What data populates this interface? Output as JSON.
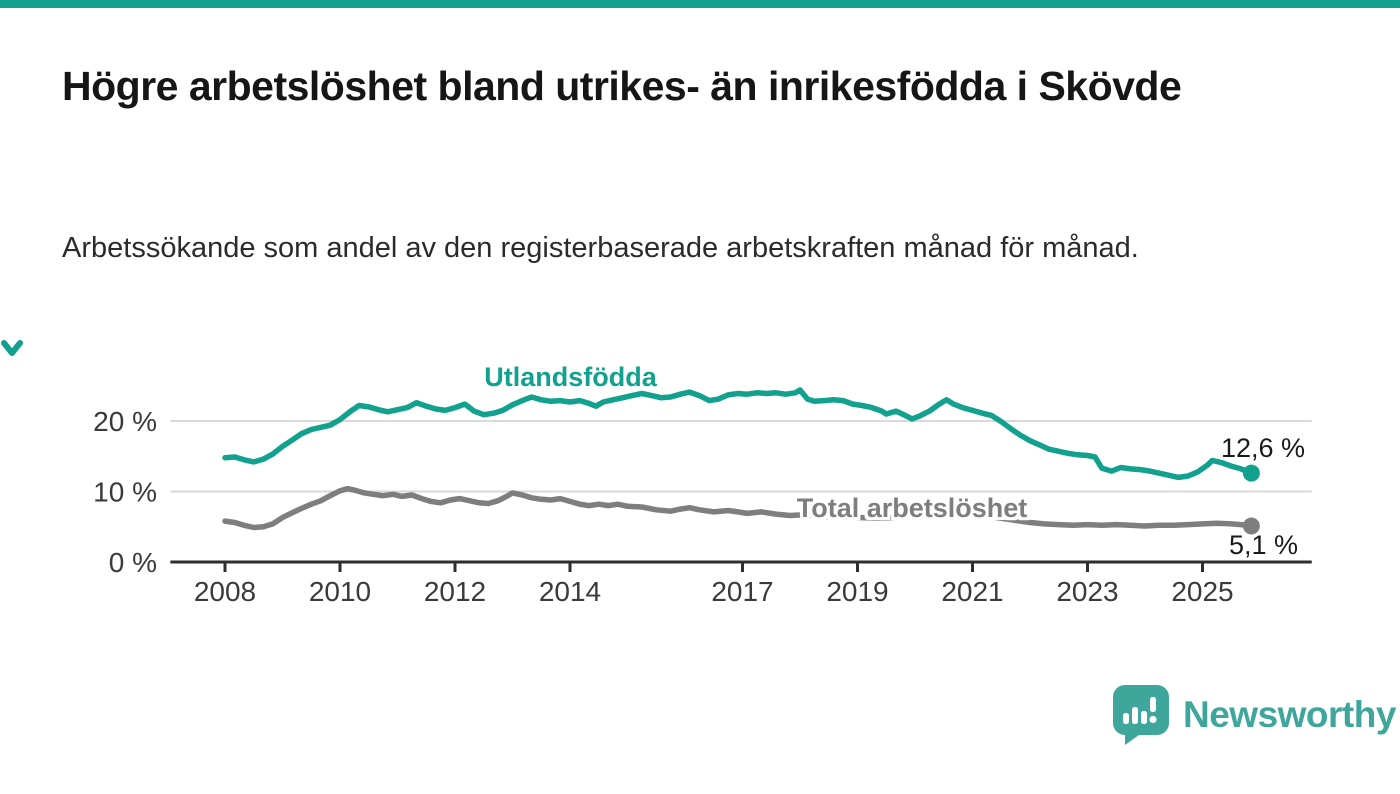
{
  "page": {
    "title": "Högre arbetslöshet bland utrikes- än inrikesfödda i Skövde",
    "subtitle": "Arbetssökande som andel av den registerbaserade arbetskraften månad för månad.",
    "accent_color": "#12a18e"
  },
  "chart_data": {
    "type": "line",
    "title": "Högre arbetslöshet bland utrikes- än inrikesfödda i Skövde",
    "subtitle": "Arbetssökande som andel av den registerbaserade arbetskraften månad för månad.",
    "unit": "%",
    "grid": "horizontal",
    "legend_position": "inline-labels",
    "x_axis": {
      "ticks": [
        2008,
        2010,
        2012,
        2014,
        2017,
        2019,
        2021,
        2023,
        2025
      ],
      "range": [
        2007.05,
        2026.9
      ]
    },
    "y_axis": {
      "ticks": [
        {
          "value": 20,
          "label": "20 %"
        },
        {
          "value": 10,
          "label": "10 %"
        },
        {
          "value": 0,
          "label": "0 %"
        }
      ],
      "range": [
        0,
        27
      ]
    },
    "series": [
      {
        "name": "Utlandsfödda",
        "color": "#12a18e",
        "end_label": "12,6 %",
        "end_value": 12.6,
        "points": [
          [
            2008.0,
            14.8
          ],
          [
            2008.17,
            14.9
          ],
          [
            2008.33,
            14.5
          ],
          [
            2008.5,
            14.2
          ],
          [
            2008.67,
            14.6
          ],
          [
            2008.83,
            15.3
          ],
          [
            2009.0,
            16.4
          ],
          [
            2009.17,
            17.3
          ],
          [
            2009.33,
            18.2
          ],
          [
            2009.5,
            18.8
          ],
          [
            2009.67,
            19.1
          ],
          [
            2009.83,
            19.4
          ],
          [
            2010.0,
            20.2
          ],
          [
            2010.17,
            21.3
          ],
          [
            2010.33,
            22.2
          ],
          [
            2010.5,
            22.0
          ],
          [
            2010.67,
            21.6
          ],
          [
            2010.83,
            21.3
          ],
          [
            2011.0,
            21.6
          ],
          [
            2011.17,
            21.9
          ],
          [
            2011.33,
            22.6
          ],
          [
            2011.5,
            22.1
          ],
          [
            2011.67,
            21.7
          ],
          [
            2011.83,
            21.5
          ],
          [
            2012.0,
            21.9
          ],
          [
            2012.17,
            22.4
          ],
          [
            2012.33,
            21.4
          ],
          [
            2012.5,
            20.9
          ],
          [
            2012.67,
            21.1
          ],
          [
            2012.83,
            21.5
          ],
          [
            2013.0,
            22.3
          ],
          [
            2013.17,
            22.9
          ],
          [
            2013.33,
            23.4
          ],
          [
            2013.5,
            23.0
          ],
          [
            2013.67,
            22.8
          ],
          [
            2013.83,
            22.9
          ],
          [
            2014.0,
            22.7
          ],
          [
            2014.17,
            22.9
          ],
          [
            2014.33,
            22.5
          ],
          [
            2014.45,
            22.1
          ],
          [
            2014.58,
            22.7
          ],
          [
            2014.75,
            23.0
          ],
          [
            2014.92,
            23.3
          ],
          [
            2015.08,
            23.6
          ],
          [
            2015.25,
            23.9
          ],
          [
            2015.42,
            23.6
          ],
          [
            2015.58,
            23.3
          ],
          [
            2015.75,
            23.4
          ],
          [
            2015.92,
            23.8
          ],
          [
            2016.08,
            24.1
          ],
          [
            2016.25,
            23.6
          ],
          [
            2016.42,
            22.9
          ],
          [
            2016.58,
            23.1
          ],
          [
            2016.75,
            23.7
          ],
          [
            2016.92,
            23.9
          ],
          [
            2017.08,
            23.8
          ],
          [
            2017.25,
            24.0
          ],
          [
            2017.42,
            23.9
          ],
          [
            2017.58,
            24.0
          ],
          [
            2017.75,
            23.8
          ],
          [
            2017.92,
            24.0
          ],
          [
            2018.0,
            24.4
          ],
          [
            2018.13,
            23.1
          ],
          [
            2018.25,
            22.8
          ],
          [
            2018.42,
            22.9
          ],
          [
            2018.58,
            23.0
          ],
          [
            2018.75,
            22.9
          ],
          [
            2018.92,
            22.4
          ],
          [
            2019.08,
            22.2
          ],
          [
            2019.25,
            21.9
          ],
          [
            2019.42,
            21.4
          ],
          [
            2019.5,
            21.0
          ],
          [
            2019.67,
            21.4
          ],
          [
            2019.83,
            20.8
          ],
          [
            2019.95,
            20.3
          ],
          [
            2020.08,
            20.7
          ],
          [
            2020.25,
            21.4
          ],
          [
            2020.42,
            22.4
          ],
          [
            2020.55,
            23.0
          ],
          [
            2020.67,
            22.4
          ],
          [
            2020.83,
            21.9
          ],
          [
            2021.0,
            21.5
          ],
          [
            2021.17,
            21.1
          ],
          [
            2021.33,
            20.8
          ],
          [
            2021.5,
            19.9
          ],
          [
            2021.67,
            18.9
          ],
          [
            2021.83,
            18.0
          ],
          [
            2022.0,
            17.2
          ],
          [
            2022.17,
            16.6
          ],
          [
            2022.33,
            16.0
          ],
          [
            2022.5,
            15.7
          ],
          [
            2022.67,
            15.4
          ],
          [
            2022.83,
            15.2
          ],
          [
            2023.0,
            15.1
          ],
          [
            2023.13,
            14.9
          ],
          [
            2023.25,
            13.3
          ],
          [
            2023.42,
            12.9
          ],
          [
            2023.58,
            13.4
          ],
          [
            2023.75,
            13.2
          ],
          [
            2023.92,
            13.1
          ],
          [
            2024.08,
            12.9
          ],
          [
            2024.25,
            12.6
          ],
          [
            2024.42,
            12.3
          ],
          [
            2024.58,
            12.0
          ],
          [
            2024.75,
            12.2
          ],
          [
            2024.92,
            12.8
          ],
          [
            2025.08,
            13.7
          ],
          [
            2025.17,
            14.4
          ],
          [
            2025.33,
            14.1
          ],
          [
            2025.5,
            13.6
          ],
          [
            2025.67,
            13.2
          ],
          [
            2025.85,
            12.6
          ]
        ]
      },
      {
        "name": "Total arbetslöshet",
        "color": "#7e7e7e",
        "end_label": "5,1 %",
        "end_value": 5.1,
        "points": [
          [
            2008.0,
            5.8
          ],
          [
            2008.17,
            5.6
          ],
          [
            2008.33,
            5.2
          ],
          [
            2008.5,
            4.9
          ],
          [
            2008.67,
            5.0
          ],
          [
            2008.83,
            5.4
          ],
          [
            2009.0,
            6.3
          ],
          [
            2009.17,
            7.0
          ],
          [
            2009.33,
            7.6
          ],
          [
            2009.5,
            8.2
          ],
          [
            2009.67,
            8.7
          ],
          [
            2009.83,
            9.4
          ],
          [
            2010.0,
            10.1
          ],
          [
            2010.13,
            10.4
          ],
          [
            2010.25,
            10.2
          ],
          [
            2010.42,
            9.8
          ],
          [
            2010.58,
            9.6
          ],
          [
            2010.75,
            9.4
          ],
          [
            2010.92,
            9.6
          ],
          [
            2011.08,
            9.3
          ],
          [
            2011.25,
            9.5
          ],
          [
            2011.42,
            9.0
          ],
          [
            2011.58,
            8.6
          ],
          [
            2011.75,
            8.4
          ],
          [
            2011.92,
            8.8
          ],
          [
            2012.08,
            9.0
          ],
          [
            2012.25,
            8.7
          ],
          [
            2012.42,
            8.4
          ],
          [
            2012.58,
            8.3
          ],
          [
            2012.75,
            8.7
          ],
          [
            2012.92,
            9.4
          ],
          [
            2013.0,
            9.8
          ],
          [
            2013.17,
            9.5
          ],
          [
            2013.33,
            9.1
          ],
          [
            2013.5,
            8.9
          ],
          [
            2013.67,
            8.8
          ],
          [
            2013.83,
            9.0
          ],
          [
            2014.0,
            8.6
          ],
          [
            2014.17,
            8.2
          ],
          [
            2014.33,
            8.0
          ],
          [
            2014.5,
            8.2
          ],
          [
            2014.67,
            8.0
          ],
          [
            2014.83,
            8.2
          ],
          [
            2015.0,
            7.9
          ],
          [
            2015.25,
            7.8
          ],
          [
            2015.5,
            7.4
          ],
          [
            2015.75,
            7.2
          ],
          [
            2015.92,
            7.5
          ],
          [
            2016.08,
            7.7
          ],
          [
            2016.25,
            7.4
          ],
          [
            2016.5,
            7.1
          ],
          [
            2016.75,
            7.3
          ],
          [
            2016.92,
            7.1
          ],
          [
            2017.08,
            6.9
          ],
          [
            2017.33,
            7.1
          ],
          [
            2017.58,
            6.8
          ],
          [
            2017.83,
            6.6
          ],
          [
            2018.08,
            6.7
          ],
          [
            2018.33,
            6.5
          ],
          [
            2018.58,
            6.4
          ],
          [
            2018.83,
            6.4
          ],
          [
            2019.08,
            6.3
          ],
          [
            2019.33,
            6.2
          ],
          [
            2019.58,
            6.3
          ],
          [
            2019.83,
            6.5
          ],
          [
            2020.08,
            6.9
          ],
          [
            2020.33,
            7.4
          ],
          [
            2020.5,
            7.6
          ],
          [
            2020.75,
            7.3
          ],
          [
            2021.0,
            6.9
          ],
          [
            2021.25,
            6.5
          ],
          [
            2021.5,
            6.2
          ],
          [
            2021.75,
            5.9
          ],
          [
            2022.0,
            5.6
          ],
          [
            2022.25,
            5.4
          ],
          [
            2022.5,
            5.3
          ],
          [
            2022.75,
            5.2
          ],
          [
            2023.0,
            5.3
          ],
          [
            2023.25,
            5.2
          ],
          [
            2023.5,
            5.3
          ],
          [
            2023.75,
            5.2
          ],
          [
            2024.0,
            5.1
          ],
          [
            2024.25,
            5.2
          ],
          [
            2024.5,
            5.2
          ],
          [
            2024.75,
            5.3
          ],
          [
            2025.0,
            5.4
          ],
          [
            2025.25,
            5.5
          ],
          [
            2025.5,
            5.4
          ],
          [
            2025.67,
            5.3
          ],
          [
            2025.85,
            5.1
          ]
        ]
      }
    ]
  },
  "branding": {
    "logo_text": "Newsworthy",
    "logo_color": "#3fa69c"
  }
}
